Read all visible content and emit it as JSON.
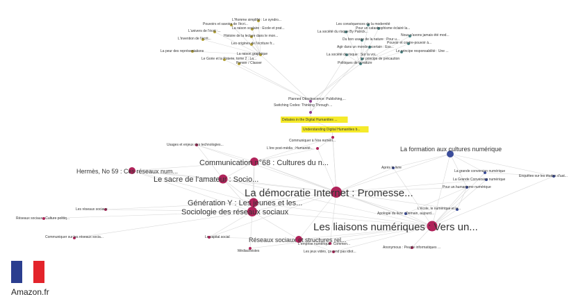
{
  "colors": {
    "edge": "#d8d8d8",
    "crimson": "#b0235a",
    "purple": "#8e3d8e",
    "navy": "#3b4d9b",
    "olive": "#b5a33a",
    "teal": "#4e8a8a",
    "highlight": "#f5ea2a"
  },
  "nodes": [
    {
      "id": "democratie",
      "label": "La démocratie Internet : Promesse...",
      "color": "crimson",
      "size": 14,
      "font": 15
    },
    {
      "id": "liaisons",
      "label": "Les liaisons numériques : Vers un...",
      "color": "crimson",
      "size": 13,
      "font": 15
    },
    {
      "id": "sociologie",
      "label": "Sociologie des réseaux sociaux",
      "color": "crimson",
      "size": 12,
      "font": 11
    },
    {
      "id": "generation",
      "label": "Génération Y : Les jeunes et les...",
      "color": "crimson",
      "size": 11,
      "font": 11
    },
    {
      "id": "sacre",
      "label": "Le sacre de l'amateur : Socio...",
      "color": "crimson",
      "size": 11,
      "font": 11
    },
    {
      "id": "communication68",
      "label": "Communication n°68 : Cultures du n...",
      "color": "crimson",
      "size": 10,
      "font": 11
    },
    {
      "id": "hermes",
      "label": "Hermès, No 59 : Ces réseaux num...",
      "color": "crimson",
      "size": 8,
      "font": 9
    },
    {
      "id": "reseaux-structures",
      "label": "Réseaux sociaux et structures rel...",
      "color": "crimson",
      "size": 8,
      "font": 9
    },
    {
      "id": "formation",
      "label": "La formation aux cultures numérique",
      "color": "navy",
      "size": 8,
      "font": 9
    },
    {
      "id": "digital-debates",
      "label": "Debates in the Digital Humanities ...",
      "color": "purple",
      "size": 4,
      "font": 5,
      "highlight": true
    },
    {
      "id": "digital-understanding",
      "label": "Understanding Digital Humanities b...",
      "color": "purple",
      "size": 4,
      "font": 5,
      "highlight": true
    },
    {
      "id": "planned",
      "label": "Planned Obsolescence: Publishing,...",
      "color": "purple",
      "size": 3,
      "font": 5
    },
    {
      "id": "switching",
      "label": "Switching Codes: Thinking Through ...",
      "color": "purple",
      "size": 3,
      "font": 5
    },
    {
      "id": "communiquer",
      "label": "Communiquer à l'ère numéri...",
      "color": "crimson",
      "size": 3,
      "font": 5
    },
    {
      "id": "ere-postmedia",
      "label": "L'ère post-média : Humanité...",
      "color": "crimson",
      "size": 3,
      "font": 5
    },
    {
      "id": "usages",
      "label": "Usages et enjeux des technologies...",
      "color": "crimson",
      "size": 3,
      "font": 5
    },
    {
      "id": "apres-livre",
      "label": "Après le livre",
      "color": "navy",
      "size": 3,
      "font": 5
    },
    {
      "id": "grande-conversion",
      "label": "La grande conversion numérique",
      "color": "navy",
      "size": 3,
      "font": 5
    },
    {
      "id": "grande-conversion-2",
      "label": "La Grande Conversion numérique",
      "color": "navy",
      "size": 3,
      "font": 5
    },
    {
      "id": "humanisme",
      "label": "Pour un humanisme numérique",
      "color": "navy",
      "size": 3,
      "font": 5
    },
    {
      "id": "enquetes",
      "label": "Enquêtes sur les études d'uat...",
      "color": "navy",
      "size": 3,
      "font": 5
    },
    {
      "id": "ecole",
      "label": "L'école, le numérique et la...",
      "color": "navy",
      "size": 3,
      "font": 5
    },
    {
      "id": "apologie",
      "label": "Apologie du livre : Demain, aujourd...",
      "color": "navy",
      "size": 3,
      "font": 5
    },
    {
      "id": "reseaux-sociaux-1",
      "label": "Les réseaux sociaux",
      "color": "crimson",
      "size": 3,
      "font": 5
    },
    {
      "id": "reseaux-culture",
      "label": "Réseaux sociaux : Culture politiq...",
      "color": "crimson",
      "size": 3,
      "font": 5
    },
    {
      "id": "communiquer-reseaux",
      "label": "Communiquer sur les réseaux socia...",
      "color": "crimson",
      "size": 3,
      "font": 5
    },
    {
      "id": "capital",
      "label": "Le capital social",
      "color": "crimson",
      "size": 3,
      "font": 5
    },
    {
      "id": "mediactivistes",
      "label": "Médiactivistes",
      "color": "crimson",
      "size": 3,
      "font": 5
    },
    {
      "id": "emprise",
      "label": "L'emprise numérique : Commen...",
      "color": "crimson",
      "size": 3,
      "font": 5
    },
    {
      "id": "jeux-video",
      "label": "Les jeux vidéo, ça rend pas idiot...",
      "color": "crimson",
      "size": 3,
      "font": 5
    },
    {
      "id": "anonymous",
      "label": "Anonymous : Peuple informatiques ...",
      "color": "crimson",
      "size": 3,
      "font": 5
    },
    {
      "id": "homme-simplifie",
      "label": "L'Homme simplifié : Le syndro...",
      "color": "olive",
      "size": 3,
      "font": 5
    },
    {
      "id": "pouvoirs",
      "label": "Pouvoirs et savoirs de l'écri...",
      "color": "olive",
      "size": 3,
      "font": 5
    },
    {
      "id": "raison-scolaire",
      "label": "La raison scolaire : Ecole et prat...",
      "color": "olive",
      "size": 3,
      "font": 5
    },
    {
      "id": "univers-ecrit",
      "label": "L'univers de l'écrit :...",
      "color": "olive",
      "size": 3,
      "font": 5
    },
    {
      "id": "histoire-lecture",
      "label": "Histoire de la lecture dans le mon...",
      "color": "olive",
      "size": 3,
      "font": 5
    },
    {
      "id": "invention",
      "label": "L'invention de l'écrit...",
      "color": "olive",
      "size": 3,
      "font": 5
    },
    {
      "id": "origines",
      "label": "Les origines de l'écriture fr...",
      "color": "olive",
      "size": 3,
      "font": 5
    },
    {
      "id": "peur",
      "label": "La peur des représentations",
      "color": "olive",
      "size": 3,
      "font": 5
    },
    {
      "id": "raison-graphique",
      "label": "La raison graphique",
      "color": "olive",
      "size": 3,
      "font": 5
    },
    {
      "id": "gorie",
      "label": "Le Gorie et la Poterie, tome 2 : La...",
      "color": "olive",
      "size": 3,
      "font": 5
    },
    {
      "id": "penser",
      "label": "Penser / Classer",
      "color": "olive",
      "size": 3,
      "font": 5
    },
    {
      "id": "consequences",
      "label": "Les conséquences de la modernité",
      "color": "teal",
      "size": 3,
      "font": 5
    },
    {
      "id": "catastrophisme",
      "label": "Pour un catastrophisme éclairé la...",
      "color": "teal",
      "size": 3,
      "font": 5
    },
    {
      "id": "societe-risque",
      "label": "La société du risque By Patrick...",
      "color": "teal",
      "size": 3,
      "font": 5
    },
    {
      "id": "avions",
      "label": "Nous n'avons jamais été mod...",
      "color": "teal",
      "size": 3,
      "font": 5
    },
    {
      "id": "usage-nature",
      "label": "Du bon usage de la nature : Pour u...",
      "color": "teal",
      "size": 3,
      "font": 5
    },
    {
      "id": "pouvoir-savoir",
      "label": "Pouvoir et contre-pouvoir à...",
      "color": "teal",
      "size": 3,
      "font": 5
    },
    {
      "id": "agir",
      "label": "Agir dans un monde incertain : Ess...",
      "color": "teal",
      "size": 3,
      "font": 5
    },
    {
      "id": "principe-resp",
      "label": "Le principe responsabilité : Une ...",
      "color": "teal",
      "size": 3,
      "font": 5
    },
    {
      "id": "societe-rar",
      "label": "La société du risque : Sur la voi...",
      "color": "teal",
      "size": 3,
      "font": 5
    },
    {
      "id": "principe-prec",
      "label": "Le principe de précaution",
      "color": "teal",
      "size": 3,
      "font": 5
    },
    {
      "id": "politiques",
      "label": "Politiques de la nature",
      "color": "teal",
      "size": 3,
      "font": 5
    }
  ],
  "brand": {
    "label": "Amazon.fr",
    "flag": [
      "#2b3e8f",
      "#ffffff",
      "#e3242b"
    ]
  }
}
